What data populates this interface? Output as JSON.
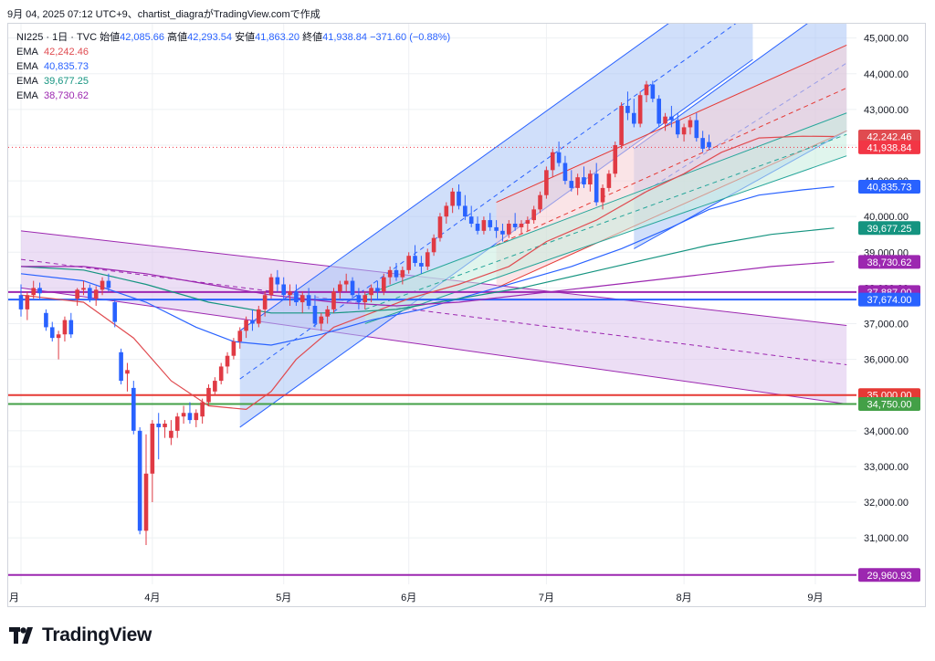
{
  "caption": "9月 04, 2025 07:12 UTC+9、chartist_diagraがTradingView.comで作成",
  "brand": "TradingView",
  "header": {
    "symbol": "NI225 · 1日 · TVC",
    "open_label": "始値",
    "open": "42,085.66",
    "high_label": "高値",
    "high": "42,293.54",
    "low_label": "安値",
    "low": "41,863.20",
    "close_label": "終値",
    "close": "41,938.84",
    "change": "−371.60 (−0.88%)"
  },
  "colors": {
    "up": "#e03a44",
    "down": "#2962ff",
    "ema1": "#e04b50",
    "ema2": "#2962ff",
    "ema3": "#159480",
    "ema4": "#9c27b0",
    "blue_channel": "#aac4f5",
    "purple_channel": "#dcc2ec",
    "red_channel": "#f6cdd4",
    "green_channel": "#c6ecde",
    "support_red": "#e53935",
    "support_green": "#43a047",
    "support_purple": "#9c27b0",
    "support_blue": "#2962ff"
  },
  "chart_data": {
    "type": "candlestick",
    "ylim": [
      29700,
      45400
    ],
    "y_ticks": [
      31000,
      32000,
      33000,
      34000,
      35000,
      36000,
      37000,
      38000,
      39000,
      40000,
      41000,
      42000,
      43000,
      44000,
      45000
    ],
    "y_tick_labels": [
      "31,000.00",
      "32,000.00",
      "33,000.00",
      "34,000.00",
      "35,000.00",
      "36,000.00",
      "37,000.00",
      "38,000.00",
      "39,000.00",
      "40,000.00",
      "41,000.00",
      "42,000.00",
      "43,000.00",
      "44,000.00",
      "45,000.00"
    ],
    "x_labels": [
      "月",
      "4月",
      "5月",
      "6月",
      "7月",
      "8月",
      "9月"
    ],
    "x_label_bar_index": [
      0,
      21,
      42,
      62,
      84,
      106,
      127
    ],
    "emas": [
      {
        "label": "EMA",
        "value": "42,242.46",
        "color": "#e04b50"
      },
      {
        "label": "EMA",
        "value": "40,835.73",
        "color": "#2962ff"
      },
      {
        "label": "EMA",
        "value": "39,677.25",
        "color": "#159480"
      },
      {
        "label": "EMA",
        "value": "38,730.62",
        "color": "#9c27b0"
      }
    ],
    "hlines": [
      {
        "value": 37887,
        "label": "37,887.00",
        "color": "#9c27b0"
      },
      {
        "value": 37674,
        "label": "37,674.00",
        "color": "#2962ff"
      },
      {
        "value": 35000,
        "label": "35,000.00",
        "color": "#e53935"
      },
      {
        "value": 34750,
        "label": "34,750.00",
        "color": "#43a047"
      },
      {
        "value": 29960.93,
        "label": "29,960.93",
        "color": "#9c27b0"
      }
    ],
    "last_price": {
      "value": 41938.84,
      "label": "41,938.84",
      "color": "#f23645"
    },
    "price_badges": [
      {
        "value": 42242.46,
        "label": "42,242.46",
        "color": "#e04b50"
      },
      {
        "value": 41938.84,
        "label": "41,938.84",
        "color": "#f23645"
      },
      {
        "value": 40835.73,
        "label": "40,835.73",
        "color": "#2962ff"
      },
      {
        "value": 39677.25,
        "label": "39,677.25",
        "color": "#159480"
      },
      {
        "value": 38730.62,
        "label": "38,730.62",
        "color": "#9c27b0"
      },
      {
        "value": 37887,
        "label": "37,887.00",
        "color": "#9c27b0"
      },
      {
        "value": 37674,
        "label": "37,674.00",
        "color": "#2962ff"
      },
      {
        "value": 35000,
        "label": "35,000.00",
        "color": "#e53935"
      },
      {
        "value": 34750,
        "label": "34,750.00",
        "color": "#43a047"
      },
      {
        "value": 29960.93,
        "label": "29,960.93",
        "color": "#9c27b0"
      }
    ],
    "ema_keypoints": [
      {
        "name": "ema1",
        "points": [
          [
            0,
            37800
          ],
          [
            10,
            37600
          ],
          [
            18,
            36600
          ],
          [
            24,
            35400
          ],
          [
            30,
            34700
          ],
          [
            36,
            34600
          ],
          [
            40,
            35100
          ],
          [
            44,
            36000
          ],
          [
            50,
            36900
          ],
          [
            56,
            37300
          ],
          [
            62,
            37700
          ],
          [
            70,
            38100
          ],
          [
            78,
            38600
          ],
          [
            84,
            39300
          ],
          [
            92,
            39900
          ],
          [
            100,
            40700
          ],
          [
            106,
            41200
          ],
          [
            112,
            41800
          ],
          [
            118,
            42200
          ],
          [
            125,
            42250
          ],
          [
            130,
            42242
          ]
        ]
      },
      {
        "name": "ema2",
        "points": [
          [
            0,
            38400
          ],
          [
            10,
            38200
          ],
          [
            20,
            37600
          ],
          [
            28,
            36900
          ],
          [
            34,
            36500
          ],
          [
            40,
            36400
          ],
          [
            48,
            36700
          ],
          [
            56,
            37100
          ],
          [
            64,
            37400
          ],
          [
            72,
            37800
          ],
          [
            80,
            38200
          ],
          [
            88,
            38600
          ],
          [
            96,
            39100
          ],
          [
            104,
            39700
          ],
          [
            110,
            40200
          ],
          [
            118,
            40600
          ],
          [
            125,
            40750
          ],
          [
            130,
            40836
          ]
        ]
      },
      {
        "name": "ema3",
        "points": [
          [
            0,
            38600
          ],
          [
            10,
            38500
          ],
          [
            20,
            38100
          ],
          [
            30,
            37600
          ],
          [
            40,
            37300
          ],
          [
            50,
            37300
          ],
          [
            60,
            37400
          ],
          [
            70,
            37700
          ],
          [
            80,
            38000
          ],
          [
            90,
            38400
          ],
          [
            100,
            38800
          ],
          [
            110,
            39200
          ],
          [
            120,
            39500
          ],
          [
            130,
            39677
          ]
        ]
      },
      {
        "name": "ema4",
        "points": [
          [
            0,
            38600
          ],
          [
            10,
            38600
          ],
          [
            20,
            38400
          ],
          [
            30,
            38100
          ],
          [
            40,
            37800
          ],
          [
            50,
            37600
          ],
          [
            60,
            37500
          ],
          [
            70,
            37600
          ],
          [
            80,
            37800
          ],
          [
            90,
            38000
          ],
          [
            100,
            38200
          ],
          [
            110,
            38400
          ],
          [
            120,
            38600
          ],
          [
            130,
            38731
          ]
        ]
      }
    ],
    "channels": [
      {
        "name": "purple-descending",
        "fill": "#dcc2ec",
        "x0": 0,
        "x1": 132,
        "upper": [
          39600,
          36950
        ],
        "lower": [
          38000,
          34750
        ],
        "mid": [
          38800,
          35850
        ]
      },
      {
        "name": "blue-ascending",
        "fill": "#aac4f5",
        "x0": 35,
        "x1": 117,
        "upper": [
          36800,
          47100
        ],
        "lower": [
          34100,
          44400
        ],
        "mid": [
          35450,
          45750
        ]
      },
      {
        "name": "blue-ascending-inner",
        "fill": "#aac4f5",
        "x0": 98,
        "x1": 132,
        "upper": [
          41900,
          46200
        ],
        "lower": [
          39100,
          42400
        ],
        "mid": [
          40500,
          44300
        ]
      },
      {
        "name": "red-channel",
        "fill": "#f6cdd4",
        "x0": 76,
        "x1": 132,
        "upper": [
          40400,
          44800
        ],
        "lower": [
          38000,
          42400
        ],
        "mid": [
          39200,
          43600
        ]
      },
      {
        "name": "green-channel",
        "fill": "#c6ecde",
        "x0": 55,
        "x1": 132,
        "upper": [
          37800,
          42900
        ],
        "lower": [
          37000,
          41700
        ],
        "mid": [
          37400,
          42300
        ]
      }
    ],
    "candles": [
      [
        37800,
        38100,
        37200,
        37400
      ],
      [
        37400,
        37900,
        37100,
        37800
      ],
      [
        37800,
        38200,
        37700,
        38000
      ],
      [
        38000,
        38150,
        37700,
        37850
      ],
      [
        37300,
        37400,
        36800,
        36900
      ],
      [
        36900,
        37050,
        36500,
        36600
      ],
      [
        36600,
        36800,
        36000,
        36700
      ],
      [
        36700,
        37200,
        36500,
        37100
      ],
      [
        37100,
        37300,
        36600,
        36700
      ],
      [
        37700,
        38000,
        37500,
        37950
      ],
      [
        37950,
        38200,
        37800,
        38000
      ],
      [
        38000,
        38100,
        37600,
        37700
      ],
      [
        37700,
        38050,
        37500,
        37950
      ],
      [
        37950,
        38300,
        37800,
        38200
      ],
      [
        38200,
        38400,
        37900,
        38000
      ],
      [
        37600,
        37700,
        36900,
        37050
      ],
      [
        36200,
        36300,
        35300,
        35400
      ],
      [
        35600,
        35900,
        35100,
        35700
      ],
      [
        35200,
        35400,
        33900,
        34000
      ],
      [
        34000,
        34100,
        31100,
        31200
      ],
      [
        31200,
        33900,
        30800,
        32800
      ],
      [
        32800,
        34300,
        32000,
        34200
      ],
      [
        34200,
        34500,
        33200,
        34100
      ],
      [
        34100,
        34300,
        33800,
        34200
      ],
      [
        33800,
        34300,
        33600,
        34000
      ],
      [
        34000,
        34500,
        33800,
        34400
      ],
      [
        34400,
        34700,
        34200,
        34500
      ],
      [
        34500,
        34800,
        34200,
        34300
      ],
      [
        34300,
        34600,
        34100,
        34500
      ],
      [
        34400,
        34900,
        34200,
        34800
      ],
      [
        34800,
        35300,
        34700,
        35200
      ],
      [
        35100,
        35500,
        35000,
        35400
      ],
      [
        35400,
        35900,
        35300,
        35800
      ],
      [
        35800,
        36200,
        35600,
        36100
      ],
      [
        36100,
        36600,
        36000,
        36500
      ],
      [
        36500,
        36900,
        36300,
        36800
      ],
      [
        36800,
        37200,
        36600,
        37100
      ],
      [
        37100,
        37400,
        36800,
        37000
      ],
      [
        37000,
        37500,
        36900,
        37400
      ],
      [
        37400,
        37900,
        37200,
        37800
      ],
      [
        37800,
        38400,
        37700,
        38300
      ],
      [
        38300,
        38500,
        37900,
        38100
      ],
      [
        38100,
        38300,
        37700,
        37800
      ],
      [
        37800,
        38100,
        37500,
        37900
      ],
      [
        37900,
        38100,
        37500,
        37600
      ],
      [
        37600,
        37900,
        37300,
        37800
      ],
      [
        37800,
        38000,
        37400,
        37500
      ],
      [
        37500,
        37800,
        36900,
        37000
      ],
      [
        37000,
        37300,
        36800,
        37200
      ],
      [
        37200,
        37500,
        37000,
        37400
      ],
      [
        37400,
        38000,
        37300,
        37900
      ],
      [
        37900,
        38200,
        37700,
        38100
      ],
      [
        38100,
        38400,
        37900,
        38200
      ],
      [
        38200,
        38300,
        37700,
        37800
      ],
      [
        37800,
        38000,
        37400,
        37600
      ],
      [
        37600,
        37900,
        37400,
        37800
      ],
      [
        37800,
        38100,
        37600,
        38000
      ],
      [
        38000,
        38200,
        37700,
        37900
      ],
      [
        37900,
        38400,
        37800,
        38300
      ],
      [
        38300,
        38600,
        38100,
        38500
      ],
      [
        38500,
        38700,
        38200,
        38300
      ],
      [
        38300,
        38600,
        38100,
        38500
      ],
      [
        38500,
        39000,
        38400,
        38900
      ],
      [
        38900,
        39200,
        38600,
        38700
      ],
      [
        38700,
        38900,
        38400,
        38600
      ],
      [
        38600,
        39100,
        38500,
        39000
      ],
      [
        39000,
        39500,
        38900,
        39400
      ],
      [
        39400,
        40100,
        39300,
        40000
      ],
      [
        40000,
        40400,
        39800,
        40300
      ],
      [
        40300,
        40800,
        40100,
        40700
      ],
      [
        40700,
        40900,
        40200,
        40300
      ],
      [
        40300,
        40600,
        39900,
        40000
      ],
      [
        40000,
        40300,
        39700,
        39800
      ],
      [
        39800,
        40000,
        39500,
        39600
      ],
      [
        39600,
        40000,
        39500,
        39900
      ],
      [
        39900,
        40100,
        39600,
        39700
      ],
      [
        39700,
        39900,
        39400,
        39600
      ],
      [
        39600,
        39800,
        39300,
        39500
      ],
      [
        39500,
        39900,
        39400,
        39800
      ],
      [
        39800,
        40100,
        39600,
        39700
      ],
      [
        39700,
        39900,
        39500,
        39800
      ],
      [
        39800,
        40000,
        39600,
        39900
      ],
      [
        39900,
        40300,
        39800,
        40200
      ],
      [
        40200,
        40700,
        40100,
        40600
      ],
      [
        40600,
        41400,
        40500,
        41300
      ],
      [
        41300,
        41900,
        41100,
        41800
      ],
      [
        41800,
        42100,
        41400,
        41500
      ],
      [
        41500,
        41700,
        40900,
        41000
      ],
      [
        41000,
        41300,
        40700,
        40800
      ],
      [
        40800,
        41200,
        40600,
        41100
      ],
      [
        41100,
        41400,
        40800,
        40900
      ],
      [
        40900,
        41300,
        40700,
        41200
      ],
      [
        41200,
        41500,
        40300,
        40400
      ],
      [
        40400,
        40900,
        40200,
        40800
      ],
      [
        40800,
        41300,
        40700,
        41200
      ],
      [
        41200,
        42100,
        41100,
        42000
      ],
      [
        42000,
        43200,
        41900,
        43100
      ],
      [
        43100,
        43500,
        42700,
        42900
      ],
      [
        42900,
        43300,
        42500,
        42600
      ],
      [
        42600,
        43500,
        42500,
        43400
      ],
      [
        43400,
        43800,
        43200,
        43700
      ],
      [
        43700,
        43800,
        43200,
        43300
      ],
      [
        43300,
        43400,
        42500,
        42600
      ],
      [
        42600,
        42900,
        42400,
        42800
      ],
      [
        42800,
        43100,
        42500,
        42700
      ],
      [
        42700,
        42900,
        42200,
        42300
      ],
      [
        42300,
        42600,
        42100,
        42500
      ],
      [
        42500,
        42800,
        42300,
        42700
      ],
      [
        42700,
        42900,
        42100,
        42200
      ],
      [
        42200,
        42400,
        41800,
        41900
      ],
      [
        42086,
        42294,
        41863,
        41939
      ]
    ]
  }
}
